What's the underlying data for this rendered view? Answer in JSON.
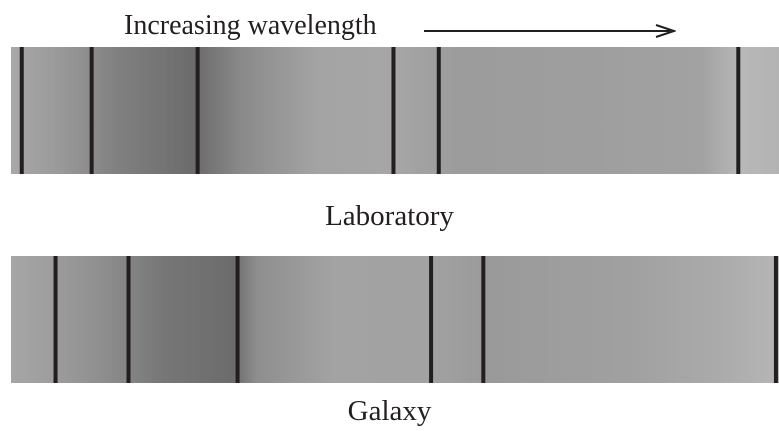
{
  "header": {
    "label": "Increasing wavelength"
  },
  "spectra": [
    {
      "id": "laboratory",
      "caption": "Laboratory",
      "line_positions": [
        0.014,
        0.105,
        0.243,
        0.498,
        0.557,
        0.947
      ]
    },
    {
      "id": "galaxy",
      "caption": "Galaxy",
      "line_positions": [
        0.058,
        0.153,
        0.295,
        0.547,
        0.615,
        0.996
      ]
    }
  ],
  "colors": {
    "line": "#231f20",
    "band_dark": "#6b6b6b",
    "band_light": "#b3b3b3"
  }
}
